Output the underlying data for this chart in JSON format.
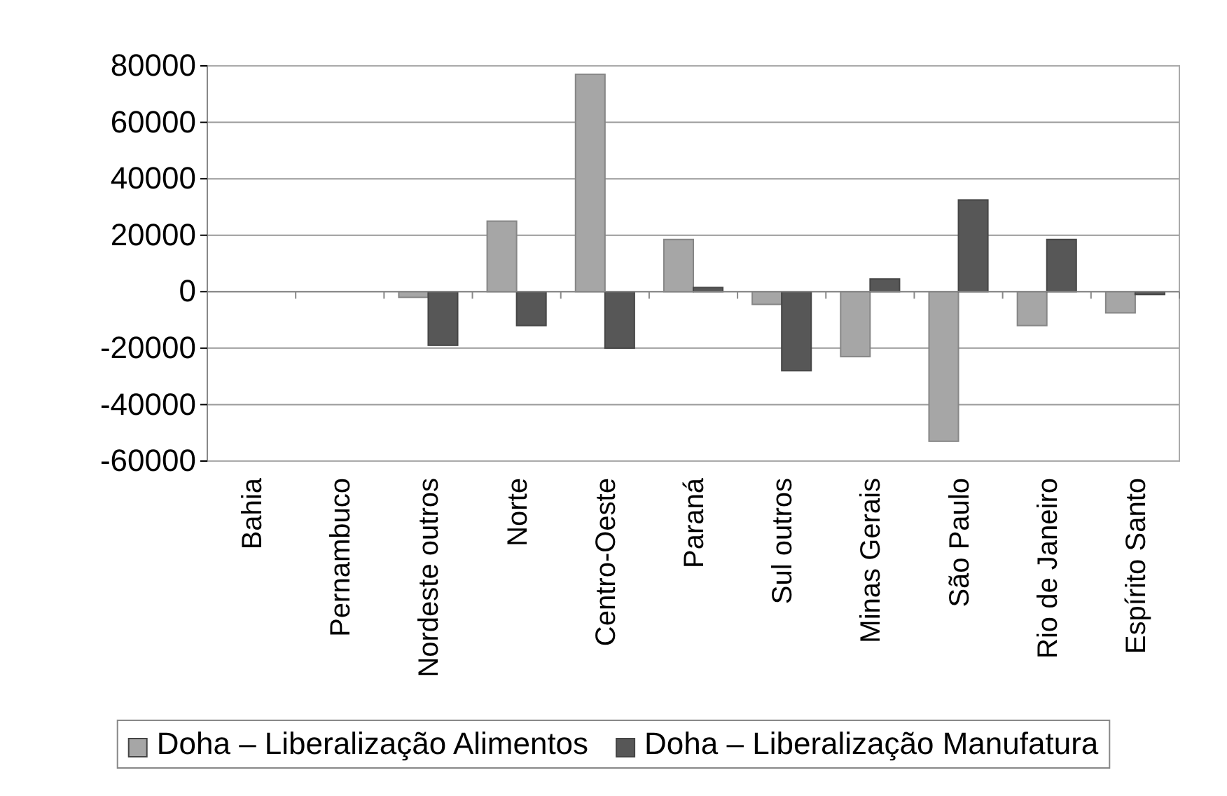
{
  "chart_data": {
    "type": "bar",
    "categories": [
      "Bahia",
      "Pernambuco",
      "Nordeste outros",
      "Norte",
      "Centro-Oeste",
      "Paraná",
      "Sul outros",
      "Minas Gerais",
      "São Paulo",
      "Rio de Janeiro",
      "Espírito Santo"
    ],
    "series": [
      {
        "name": "Doha – Liberalização Alimentos",
        "color": "#a6a6a6",
        "values": [
          0,
          0,
          -2000,
          25000,
          77000,
          18500,
          -4500,
          -23000,
          -53000,
          -12000,
          -7500
        ]
      },
      {
        "name": "Doha – Liberalização Manufatura",
        "color": "#575757",
        "values": [
          0,
          0,
          -19000,
          -12000,
          -20000,
          1500,
          -28000,
          4500,
          32500,
          18500,
          -1000
        ]
      }
    ],
    "ylim": [
      -60000,
      80000
    ],
    "yticks": [
      -60000,
      -40000,
      -20000,
      0,
      20000,
      40000,
      60000,
      80000
    ],
    "grid": "y",
    "legend": "bottom"
  }
}
